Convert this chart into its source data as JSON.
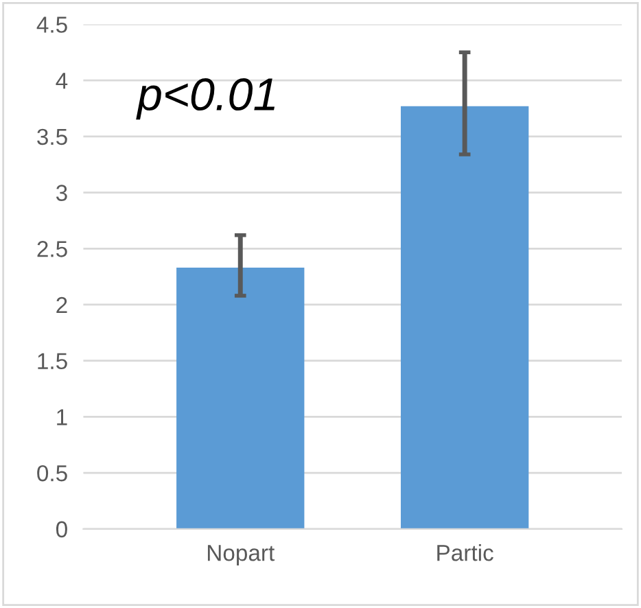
{
  "chart_data": {
    "type": "bar",
    "categories": [
      "Nopart",
      "Partic"
    ],
    "values": [
      2.33,
      3.77
    ],
    "errors": [
      [
        2.08,
        2.62
      ],
      [
        3.34,
        4.25
      ]
    ],
    "color": "#5b9bd5",
    "ylim": [
      0,
      4.5
    ],
    "yticks": [
      0,
      0.5,
      1,
      1.5,
      2,
      2.5,
      3,
      3.5,
      4,
      4.5
    ],
    "grid": "y",
    "annotations": [
      "p<0.01"
    ]
  }
}
